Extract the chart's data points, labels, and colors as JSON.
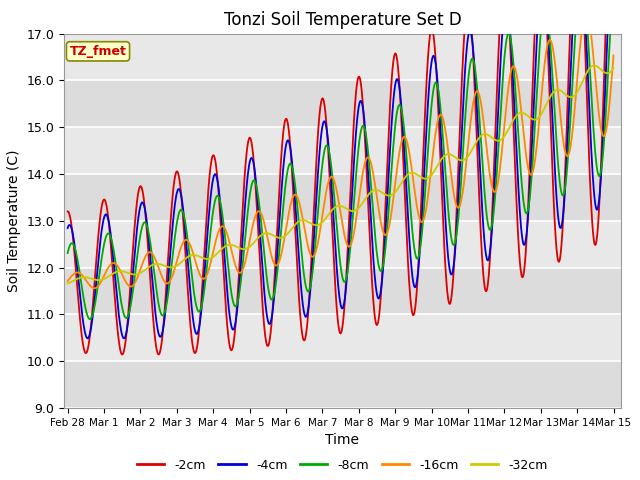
{
  "title": "Tonzi Soil Temperature Set D",
  "xlabel": "Time",
  "ylabel": "Soil Temperature (C)",
  "ylim": [
    9.0,
    17.0
  ],
  "yticks": [
    9.0,
    10.0,
    11.0,
    12.0,
    13.0,
    14.0,
    15.0,
    16.0,
    17.0
  ],
  "plot_bg_color": "#e8e8e8",
  "grid_stripe_color": "#d0d0d0",
  "legend_label": "TZ_fmet",
  "legend_box_facecolor": "#ffffcc",
  "legend_box_edgecolor": "#888800",
  "legend_text_color": "#cc0000",
  "series_colors": {
    "-2cm": "#dd0000",
    "-4cm": "#0000dd",
    "-8cm": "#00aa00",
    "-16cm": "#ff8800",
    "-32cm": "#cccc00"
  },
  "xtick_labels": [
    "Feb 28",
    "Mar 1",
    "Mar 2",
    "Mar 3",
    "Mar 4",
    "Mar 5",
    "Mar 6",
    "Mar 7",
    "Mar 8",
    "Mar 9",
    "Mar 10",
    "Mar 11",
    "Mar 12",
    "Mar 13",
    "Mar 14",
    "Mar 15"
  ],
  "figwidth": 6.4,
  "figheight": 4.8,
  "dpi": 100
}
